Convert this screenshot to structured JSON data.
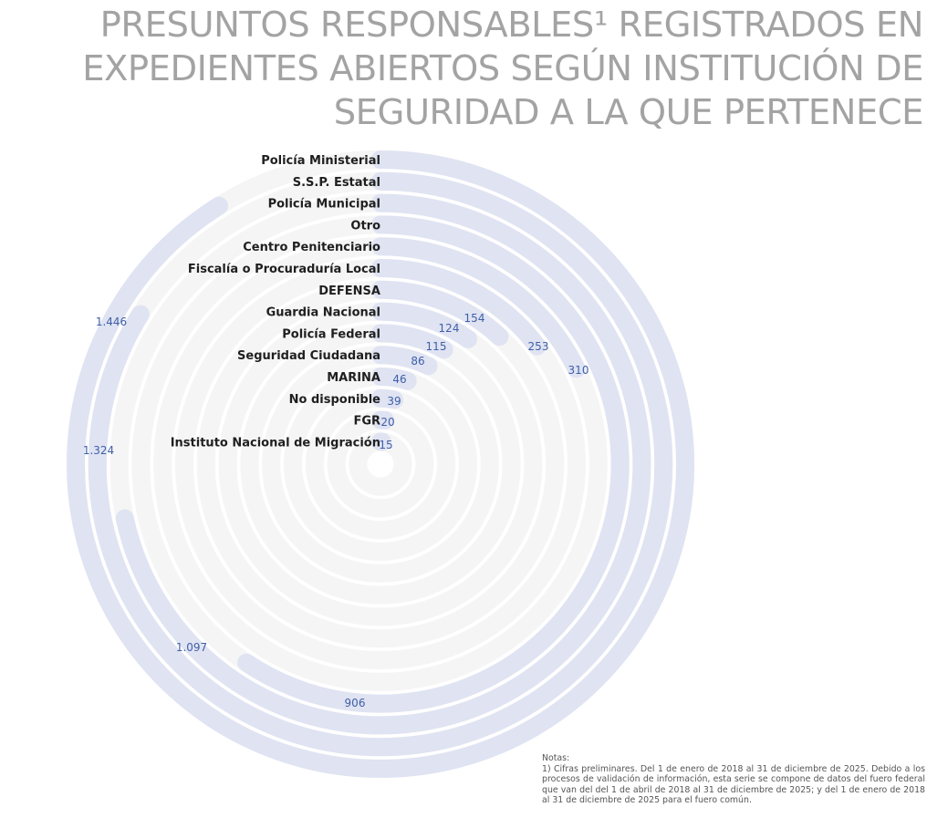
{
  "title_lines": [
    "PRESUNTOS RESPONSABLES¹ REGISTRADOS EN",
    "EXPEDIENTES ABIERTOS SEGÚN INSTITUCIÓN DE",
    "SEGURIDAD A LA QUE PERTENECE"
  ],
  "colors": {
    "bar": "#dfe3f2",
    "track": "#f5f5f5",
    "label": "#1f1f1f",
    "value": "#3f5fa8",
    "title": "#a3a3a3"
  },
  "chart_data": {
    "type": "radial-bar",
    "title": "PRESUNTOS RESPONSABLES¹ REGISTRADOS EN EXPEDIENTES ABIERTOS SEGÚN INSTITUCIÓN DE SEGURIDAD A LA QUE PERTENECE",
    "categories": [
      "Policía Ministerial",
      "S.S.P. Estatal",
      "Policía Municipal",
      "Otro",
      "Centro Penitenciario",
      "Fiscalía o Procuraduría Local",
      "DEFENSA",
      "Guardia Nacional",
      "Policía Federal",
      "Seguridad Ciudadana",
      "MARINA",
      "No disponible",
      "FGR",
      "Instituto Nacional de Migración"
    ],
    "values": [
      null,
      null,
      null,
      null,
      null,
      null,
      null,
      154,
      124,
      115,
      86,
      46,
      39,
      20
    ],
    "value_labels": [
      "",
      "",
      "",
      "",
      "",
      "",
      "",
      "154",
      "124",
      "115",
      "86",
      "46",
      "39",
      "20"
    ],
    "extra_labels": [
      "1.446",
      "1.324",
      "1.097",
      "906",
      "310",
      "253",
      "15"
    ],
    "legend": "none",
    "grid": false
  },
  "notes": {
    "heading": "Notas:",
    "text": "1) Cifras preliminares. Del 1 de enero de 2018 al 31 de diciembre de 2025. Debido a los procesos de validación de información, esta serie se compone de datos del fuero federal que van del del 1 de abril de 2018 al 31 de diciembre de 2025; y del 1 de enero de 2018 al 31 de diciembre de 2025 para el fuero común."
  }
}
